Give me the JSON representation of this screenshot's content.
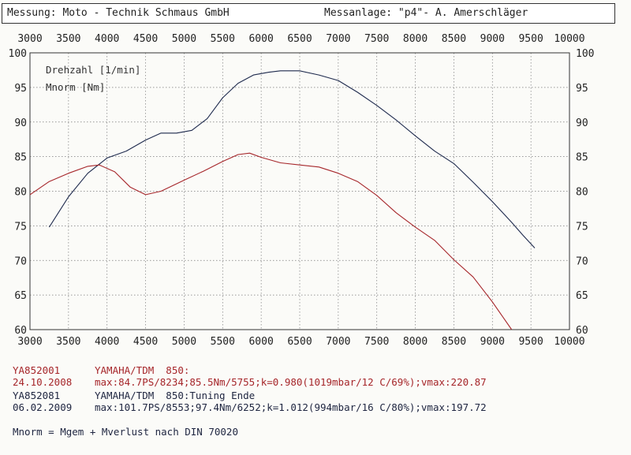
{
  "header": {
    "left": "Messung: Moto - Technik Schmaus GmbH",
    "right": "Messanlage: \"p4\"- A. Amerschläger"
  },
  "colors": {
    "run1": "#a6262a",
    "run2": "#1e2a4d",
    "grid": "#7a7a7a"
  },
  "chart_data": {
    "type": "line",
    "legend": [
      "Drehzahl [1/min]",
      "Mnorm [Nm]"
    ],
    "x_ticks": [
      "3000",
      "3500",
      "4000",
      "4500",
      "5000",
      "5500",
      "6000",
      "6500",
      "7000",
      "7500",
      "8000",
      "8500",
      "9000",
      "9500",
      "10000"
    ],
    "y_ticks": [
      "60",
      "65",
      "70",
      "75",
      "80",
      "85",
      "90",
      "95",
      "100"
    ],
    "xlim": [
      3000,
      10000
    ],
    "ylim": [
      60,
      100
    ],
    "grid": true,
    "series": [
      {
        "color": "#1e2a4d",
        "points": [
          [
            3250,
            74.8
          ],
          [
            3500,
            79.2
          ],
          [
            3750,
            82.6
          ],
          [
            4000,
            84.8
          ],
          [
            4250,
            85.8
          ],
          [
            4500,
            87.4
          ],
          [
            4700,
            88.4
          ],
          [
            4900,
            88.4
          ],
          [
            5100,
            88.8
          ],
          [
            5300,
            90.5
          ],
          [
            5500,
            93.5
          ],
          [
            5700,
            95.6
          ],
          [
            5900,
            96.8
          ],
          [
            6100,
            97.2
          ],
          [
            6250,
            97.4
          ],
          [
            6500,
            97.4
          ],
          [
            6750,
            96.8
          ],
          [
            7000,
            96.0
          ],
          [
            7250,
            94.3
          ],
          [
            7500,
            92.4
          ],
          [
            7750,
            90.3
          ],
          [
            8000,
            88.0
          ],
          [
            8250,
            85.8
          ],
          [
            8500,
            84.0
          ],
          [
            8750,
            81.3
          ],
          [
            9000,
            78.5
          ],
          [
            9250,
            75.5
          ],
          [
            9400,
            73.6
          ],
          [
            9550,
            71.8
          ]
        ]
      },
      {
        "color": "#a6262a",
        "points": [
          [
            3000,
            79.5
          ],
          [
            3250,
            81.4
          ],
          [
            3500,
            82.6
          ],
          [
            3750,
            83.6
          ],
          [
            3900,
            83.8
          ],
          [
            4100,
            82.8
          ],
          [
            4300,
            80.6
          ],
          [
            4500,
            79.5
          ],
          [
            4700,
            80.0
          ],
          [
            5000,
            81.6
          ],
          [
            5250,
            82.9
          ],
          [
            5500,
            84.3
          ],
          [
            5700,
            85.3
          ],
          [
            5850,
            85.5
          ],
          [
            6000,
            84.9
          ],
          [
            6250,
            84.1
          ],
          [
            6500,
            83.8
          ],
          [
            6750,
            83.5
          ],
          [
            7000,
            82.6
          ],
          [
            7250,
            81.4
          ],
          [
            7500,
            79.4
          ],
          [
            7750,
            76.9
          ],
          [
            8000,
            74.8
          ],
          [
            8250,
            72.9
          ],
          [
            8500,
            70.1
          ],
          [
            8750,
            67.6
          ],
          [
            9000,
            64.0
          ],
          [
            9250,
            60.0
          ]
        ]
      }
    ]
  },
  "runs": [
    {
      "id": "YA852001",
      "date": "24.10.2008",
      "model": "YAMAHA/TDM  850:",
      "stats": "max:84.7PS/8234;85.5Nm/5755;k=0.980(1019mbar/12 C/69%);vmax:220.87"
    },
    {
      "id": "YA852081",
      "date": "06.02.2009",
      "model": "YAMAHA/TDM  850:Tuning Ende",
      "stats": "max:101.7PS/8553;97.4Nm/6252;k=1.012(994mbar/16 C/80%);vmax:197.72"
    }
  ],
  "footnote": "Mnorm = Mgem + Mverlust nach DIN 70020"
}
